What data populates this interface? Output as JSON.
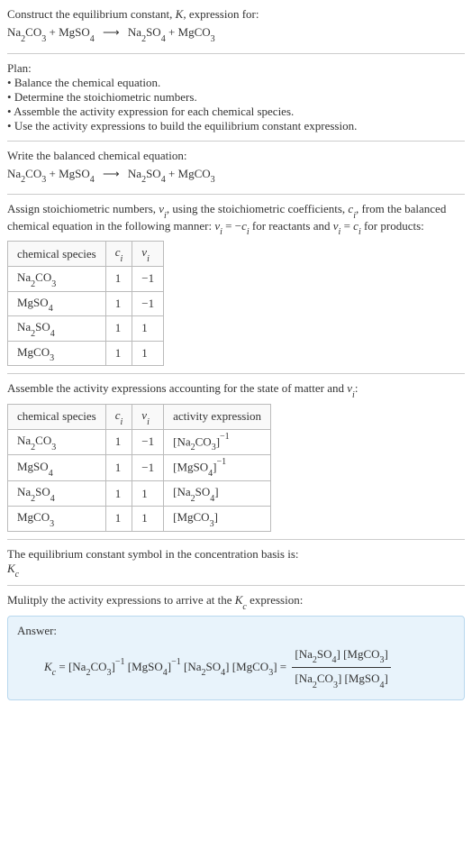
{
  "intro": {
    "line1": "Construct the equilibrium constant, ",
    "K": "K",
    "line1b": ", expression for:",
    "eq_lhs1": "Na",
    "eq_lhs1_sub": "2",
    "eq_lhs1b": "CO",
    "eq_lhs1b_sub": "3",
    "plus": " + ",
    "eq_lhs2": "MgSO",
    "eq_lhs2_sub": "4",
    "arrow": "⟶",
    "eq_rhs1": "Na",
    "eq_rhs1_sub": "2",
    "eq_rhs1b": "SO",
    "eq_rhs1b_sub": "4",
    "eq_rhs2": "MgCO",
    "eq_rhs2_sub": "3"
  },
  "plan": {
    "title": "Plan:",
    "b1": "Balance the chemical equation.",
    "b2": "Determine the stoichiometric numbers.",
    "b3": "Assemble the activity expression for each chemical species.",
    "b4": "Use the activity expressions to build the equilibrium constant expression."
  },
  "balanced": {
    "title": "Write the balanced chemical equation:"
  },
  "assign": {
    "line1a": "Assign stoichiometric numbers, ",
    "nu": "ν",
    "nu_sub": "i",
    "line1b": ", using the stoichiometric coefficients, ",
    "c": "c",
    "c_sub": "i",
    "line1c": ", from the balanced chemical equation in the following manner: ",
    "rel1": " = −",
    "line1d": " for reactants and ",
    "rel2": " = ",
    "line1e": " for products:"
  },
  "table1": {
    "h1": "chemical species",
    "h2": "c",
    "h2_sub": "i",
    "h3": "ν",
    "h3_sub": "i",
    "r1c1a": "Na",
    "r1c1a_sub": "2",
    "r1c1b": "CO",
    "r1c1b_sub": "3",
    "r1c2": "1",
    "r1c3": "−1",
    "r2c1": "MgSO",
    "r2c1_sub": "4",
    "r2c2": "1",
    "r2c3": "−1",
    "r3c1a": "Na",
    "r3c1a_sub": "2",
    "r3c1b": "SO",
    "r3c1b_sub": "4",
    "r3c2": "1",
    "r3c3": "1",
    "r4c1": "MgCO",
    "r4c1_sub": "3",
    "r4c2": "1",
    "r4c3": "1"
  },
  "assemble": {
    "line": "Assemble the activity expressions accounting for the state of matter and ",
    "nu": "ν",
    "nu_sub": "i",
    "colon": ":"
  },
  "table2": {
    "h1": "chemical species",
    "h2": "c",
    "h2_sub": "i",
    "h3": "ν",
    "h3_sub": "i",
    "h4": "activity expression",
    "r1c4a": "[Na",
    "r1c4a_sub": "2",
    "r1c4b": "CO",
    "r1c4b_sub": "3",
    "r1c4c": "]",
    "r1c4_sup": "−1",
    "r2c4a": "[MgSO",
    "r2c4a_sub": "4",
    "r2c4b": "]",
    "r2c4_sup": "−1",
    "r3c4a": "[Na",
    "r3c4a_sub": "2",
    "r3c4b": "SO",
    "r3c4b_sub": "4",
    "r3c4c": "]",
    "r4c4a": "[MgCO",
    "r4c4a_sub": "3",
    "r4c4b": "]"
  },
  "eqconst": {
    "line": "The equilibrium constant symbol in the concentration basis is:",
    "K": "K",
    "K_sub": "c"
  },
  "multiply": {
    "line1": "Mulitply the activity expressions to arrive at the ",
    "K": "K",
    "K_sub": "c",
    "line2": " expression:"
  },
  "answer": {
    "label": "Answer:",
    "Kc": "K",
    "Kc_sub": "c",
    "eq": " = ",
    "t1a": "[Na",
    "t1a_sub": "2",
    "t1b": "CO",
    "t1b_sub": "3",
    "t1c": "]",
    "t1_sup": "−1",
    "t2a": "[MgSO",
    "t2a_sub": "4",
    "t2b": "]",
    "t2_sup": "−1",
    "t3a": "[Na",
    "t3a_sub": "2",
    "t3b": "SO",
    "t3b_sub": "4",
    "t3c": "]",
    "t4a": "[MgCO",
    "t4a_sub": "3",
    "t4b": "]",
    "num1a": "[Na",
    "num1a_sub": "2",
    "num1b": "SO",
    "num1b_sub": "4",
    "num1c": "] ",
    "num2a": "[MgCO",
    "num2a_sub": "3",
    "num2b": "]",
    "den1a": "[Na",
    "den1a_sub": "2",
    "den1b": "CO",
    "den1b_sub": "3",
    "den1c": "] ",
    "den2a": "[MgSO",
    "den2a_sub": "4",
    "den2b": "]"
  }
}
